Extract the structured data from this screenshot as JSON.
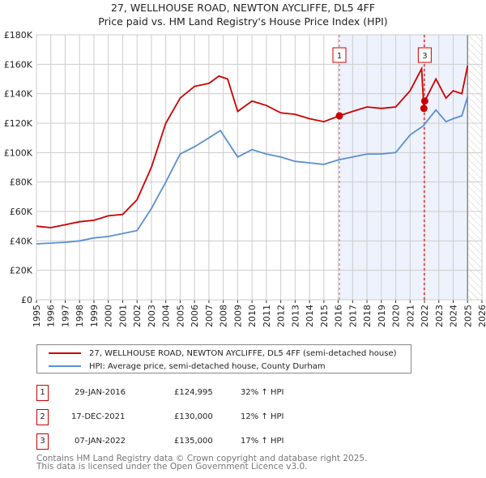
{
  "chart_data": {
    "type": "line",
    "title": "27, WELLHOUSE ROAD, NEWTON AYCLIFFE, DL5 4FF",
    "subtitle": "Price paid vs. HM Land Registry's House Price Index (HPI)",
    "xlim": [
      1995,
      2026
    ],
    "ylim": [
      0,
      180000
    ],
    "x_ticks": [
      "1995",
      "1996",
      "1997",
      "1998",
      "1999",
      "2000",
      "2001",
      "2002",
      "2003",
      "2004",
      "2005",
      "2006",
      "2007",
      "2008",
      "2009",
      "2010",
      "2011",
      "2012",
      "2013",
      "2014",
      "2015",
      "2016",
      "2017",
      "2018",
      "2019",
      "2020",
      "2021",
      "2022",
      "2023",
      "2024",
      "2025",
      "2026"
    ],
    "y_ticks": [
      {
        "v": 0,
        "l": "£0"
      },
      {
        "v": 20000,
        "l": "£20K"
      },
      {
        "v": 40000,
        "l": "£40K"
      },
      {
        "v": 60000,
        "l": "£60K"
      },
      {
        "v": 80000,
        "l": "£80K"
      },
      {
        "v": 100000,
        "l": "£100K"
      },
      {
        "v": 120000,
        "l": "£120K"
      },
      {
        "v": 140000,
        "l": "£140K"
      },
      {
        "v": 160000,
        "l": "£160K"
      },
      {
        "v": 180000,
        "l": "£180K"
      }
    ],
    "grid": true,
    "shaded_range": [
      2016.08,
      2025.0
    ],
    "hatched_from": 2025.0,
    "series": [
      {
        "name": "27, WELLHOUSE ROAD, NEWTON AYCLIFFE, DL5 4FF (semi-detached house)",
        "color": "#cc0000",
        "x": [
          1995,
          1996,
          1997,
          1998,
          1999,
          2000,
          2001,
          2002,
          2003,
          2004,
          2005,
          2006,
          2007,
          2007.7,
          2008.3,
          2009,
          2010,
          2011,
          2012,
          2013,
          2014,
          2015,
          2016.08,
          2017,
          2018,
          2019,
          2020,
          2021,
          2021.8,
          2021.96,
          2022.02,
          2022.8,
          2023.5,
          2024,
          2024.6,
          2025
        ],
        "y": [
          50000,
          49000,
          51000,
          53000,
          54000,
          57000,
          58000,
          68000,
          90000,
          120000,
          137000,
          145000,
          147000,
          152000,
          150000,
          128000,
          135000,
          132000,
          127000,
          126000,
          123000,
          121000,
          124995,
          128000,
          131000,
          130000,
          131000,
          142000,
          157000,
          130000,
          135000,
          150000,
          137000,
          142000,
          140000,
          159000
        ]
      },
      {
        "name": "HPI: Average price, semi-detached house, County Durham",
        "color": "#5b8fd0",
        "x": [
          1995,
          1997,
          1998,
          1999,
          2000,
          2001,
          2002,
          2003,
          2004,
          2005,
          2006,
          2007,
          2007.8,
          2009,
          2010,
          2011,
          2012,
          2013,
          2014,
          2015,
          2016,
          2017,
          2018,
          2019,
          2020,
          2021,
          2021.9,
          2022.8,
          2023.5,
          2024,
          2024.6,
          2025
        ],
        "y": [
          38000,
          39000,
          40000,
          42000,
          43000,
          45000,
          47000,
          62000,
          80000,
          99000,
          104000,
          110000,
          115000,
          97000,
          102000,
          99000,
          97000,
          94000,
          93000,
          92000,
          95000,
          97000,
          99000,
          99000,
          100000,
          112000,
          118000,
          129000,
          121000,
          123000,
          125000,
          138000
        ]
      }
    ],
    "sales": [
      {
        "label": "1",
        "date": "29-JAN-2016",
        "x": 2016.08,
        "price": "£124,995",
        "value": 124995,
        "hpi": "32% ↑ HPI"
      },
      {
        "label": "2",
        "date": "17-DEC-2021",
        "x": 2021.96,
        "price": "£130,000",
        "value": 130000,
        "hpi": "12% ↑ HPI"
      },
      {
        "label": "3",
        "date": "07-JAN-2022",
        "x": 2022.02,
        "price": "£135,000",
        "value": 135000,
        "hpi": "17% ↑ HPI"
      }
    ]
  },
  "footer": {
    "line1": "Contains HM Land Registry data © Crown copyright and database right 2025.",
    "line2": "This data is licensed under the Open Government Licence v3.0."
  }
}
